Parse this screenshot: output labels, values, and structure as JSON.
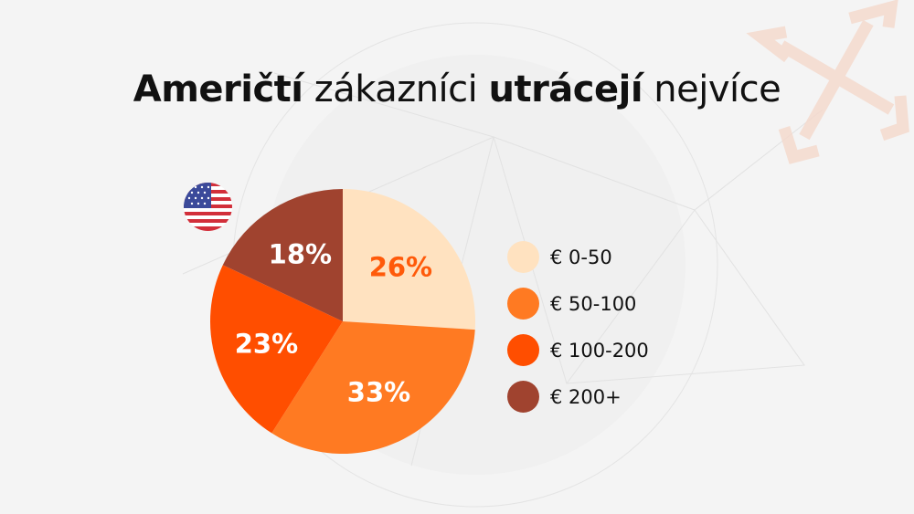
{
  "title": {
    "part1": "Američtí",
    "part2": "zákazníci",
    "part3": "utrácejí",
    "part4": "nejvíce"
  },
  "flag_icon": "usa-flag-icon",
  "chart_data": {
    "type": "pie",
    "start": "top, clockwise",
    "categories": [
      "€ 0-50",
      "€ 50-100",
      "€ 100-200",
      "€ 200+"
    ],
    "values": [
      26,
      33,
      23,
      18
    ],
    "labels": [
      "26%",
      "33%",
      "23%",
      "18%"
    ],
    "colors": [
      "#FFE2C0",
      "#FF7A22",
      "#FF4E00",
      "#A0432F"
    ],
    "label_colors": [
      "#FF5A0A",
      "#FFFFFF",
      "#FFFFFF",
      "#FFFFFF"
    ],
    "legend": "right"
  }
}
